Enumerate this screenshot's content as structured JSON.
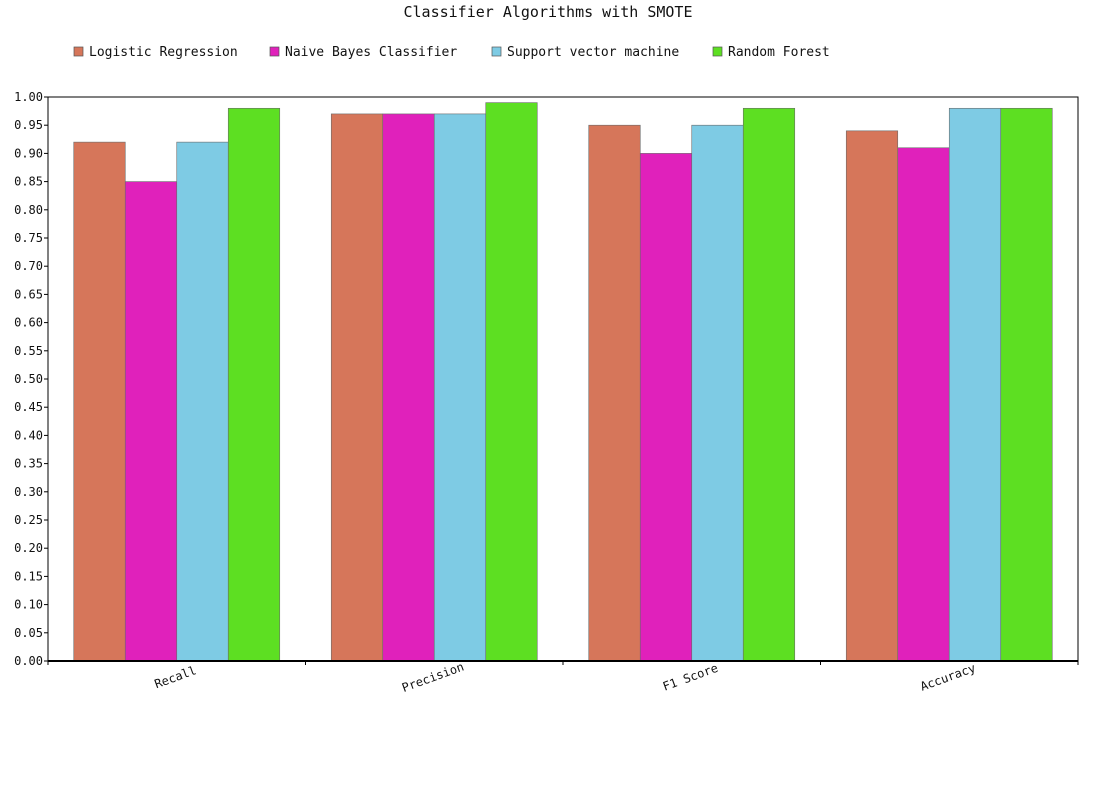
{
  "chart_data": {
    "type": "bar",
    "title": "Classifier Algorithms with SMOTE",
    "xlabel": "",
    "ylabel": "",
    "categories": [
      "Recall",
      "Precision",
      "F1 Score",
      "Accuracy"
    ],
    "series": [
      {
        "name": "Logistic Regression",
        "color": "#d6765a",
        "values": [
          0.92,
          0.97,
          0.95,
          0.94
        ]
      },
      {
        "name": "Naive Bayes Classifier",
        "color": "#e021bb",
        "values": [
          0.85,
          0.97,
          0.9,
          0.91
        ]
      },
      {
        "name": "Support vector machine",
        "color": "#7ecbe4",
        "values": [
          0.92,
          0.97,
          0.95,
          0.98
        ]
      },
      {
        "name": "Random Forest",
        "color": "#5ddf22",
        "values": [
          0.98,
          0.99,
          0.98,
          0.98
        ]
      }
    ],
    "ylim": [
      0,
      1.0
    ],
    "ytick_step": 0.05,
    "ytick_labels": [
      "0.00",
      "0.05",
      "0.10",
      "0.15",
      "0.20",
      "0.25",
      "0.30",
      "0.35",
      "0.40",
      "0.45",
      "0.50",
      "0.55",
      "0.60",
      "0.65",
      "0.70",
      "0.75",
      "0.80",
      "0.85",
      "0.90",
      "0.95",
      "1.00"
    ],
    "grid": false,
    "legend_position": "top-left"
  }
}
